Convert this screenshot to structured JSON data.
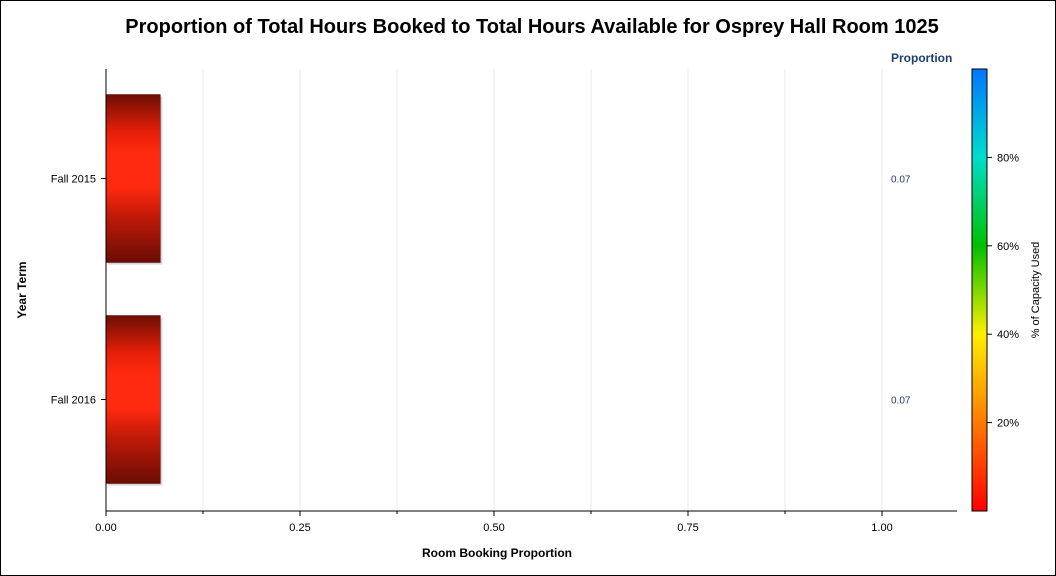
{
  "chart_data": {
    "type": "bar",
    "orientation": "horizontal",
    "title": "Proportion of Total Hours Booked to Total Hours Available for Osprey Hall Room 1025",
    "xlabel": "Room Booking Proportion",
    "ylabel": "Year Term",
    "categories": [
      "Fall 2015",
      "Fall 2016"
    ],
    "values": [
      0.07,
      0.07
    ],
    "value_labels": [
      "0.07",
      "0.07"
    ],
    "xlim": [
      0,
      1.1
    ],
    "xticks": [
      0.0,
      0.25,
      0.5,
      0.75,
      1.0
    ],
    "xtick_labels": [
      "0.00",
      "0.25",
      "0.50",
      "0.75",
      "1.00"
    ],
    "grid": true,
    "stat_column_header": "Proportion",
    "colorbar": {
      "label": "% of Capacity Used",
      "range": [
        0,
        100
      ],
      "ticks": [
        20,
        40,
        60,
        80
      ],
      "tick_labels": [
        "20%",
        "40%",
        "60%",
        "80%"
      ],
      "colors": [
        "#ff0000",
        "#ff7a00",
        "#ffee00",
        "#00c000",
        "#00ddcc",
        "#0077ff"
      ]
    },
    "bar_color": "#ff2a10"
  }
}
